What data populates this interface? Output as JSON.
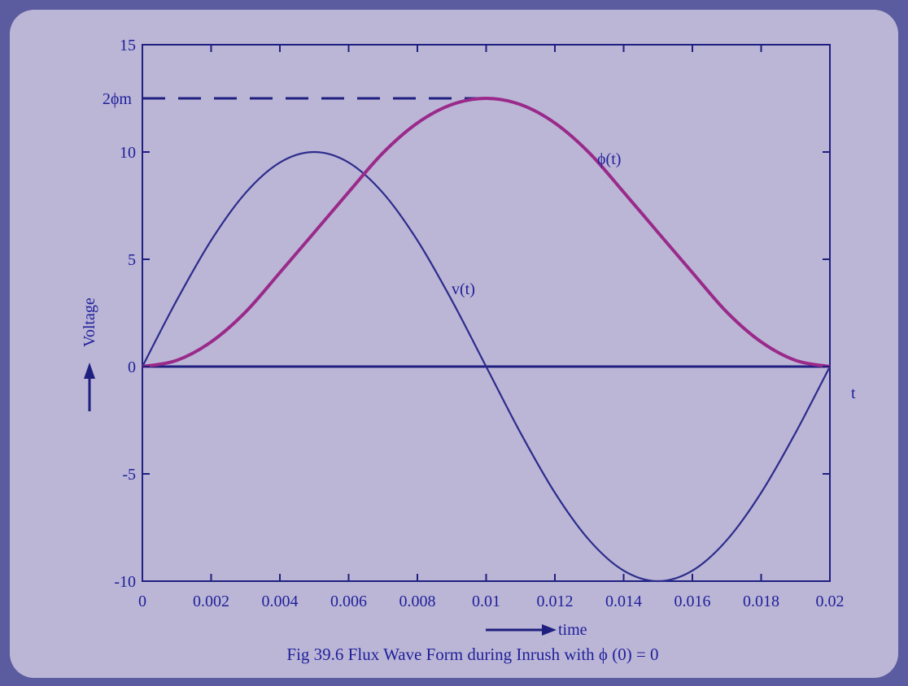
{
  "colors": {
    "frame": "#5b5ba0",
    "panel": "#bbb6d6",
    "axis": "#1f1f80",
    "text": "#1f1f9a",
    "voltage_line": "#2c2c8c",
    "flux_line": "#9a2a8a"
  },
  "chart_data": {
    "type": "line",
    "x": [
      0,
      0.001,
      0.002,
      0.003,
      0.004,
      0.005,
      0.006,
      0.007,
      0.008,
      0.009,
      0.01,
      0.011,
      0.012,
      0.013,
      0.014,
      0.015,
      0.016,
      0.017,
      0.018,
      0.019,
      0.02
    ],
    "series": [
      {
        "name": "v(t)",
        "color": "#2c2c8c",
        "values": [
          0,
          3.09,
          5.88,
          8.09,
          9.51,
          10,
          9.51,
          8.09,
          5.88,
          3.09,
          0,
          -3.09,
          -5.88,
          -8.09,
          -9.51,
          -10,
          -9.51,
          -8.09,
          -5.88,
          -3.09,
          0
        ]
      },
      {
        "name": "ϕ(t)",
        "color": "#9a2a8a",
        "values": [
          0,
          0.29,
          1.15,
          2.54,
          4.38,
          6.25,
          8.13,
          9.96,
          11.35,
          12.21,
          12.5,
          12.21,
          11.35,
          9.96,
          8.13,
          6.25,
          4.38,
          2.54,
          1.15,
          0.29,
          0
        ]
      }
    ],
    "xlim": [
      0,
      0.02
    ],
    "ylim": [
      -10,
      15
    ],
    "x_ticks": [
      "0",
      "0.002",
      "0.004",
      "0.006",
      "0.008",
      "0.01",
      "0.012",
      "0.014",
      "0.016",
      "0.018",
      "0.02"
    ],
    "y_ticks": [
      "-10",
      "-5",
      "0",
      "5",
      "10",
      "15"
    ],
    "zero_line": true,
    "peak_flux_level": 12.5,
    "peak_flux_label": "2ϕm",
    "series_labels": [
      "v(t)",
      "ϕ(t)"
    ],
    "ylabel": "Voltage",
    "xlabel": "time",
    "t_label": "t",
    "caption": "Fig 39.6 Flux Wave Form during Inrush with ϕ (0) = 0",
    "grid": false
  }
}
